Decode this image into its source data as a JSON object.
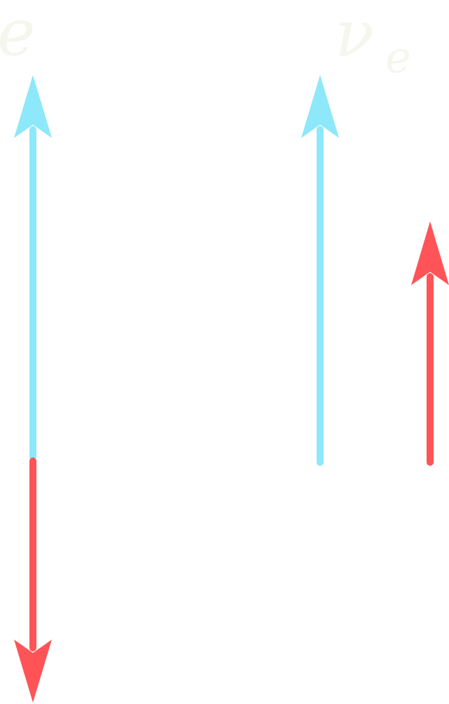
{
  "colors": {
    "background": "#ffffff",
    "label": "#f5f6ee",
    "cyan_arrow": "#8de8fa",
    "red_arrow": "#ff5457"
  },
  "labels": {
    "electron": {
      "symbol": "e",
      "superscript": "−"
    },
    "antineutrino": {
      "symbol": "ν",
      "subscript": "e",
      "overline": "—"
    }
  },
  "arrows": [
    {
      "name": "electron-momentum-arrow",
      "color": "cyan_arrow",
      "direction": "up"
    },
    {
      "name": "electron-spin-arrow",
      "color": "red_arrow",
      "direction": "down"
    },
    {
      "name": "antineutrino-momentum-arrow",
      "color": "cyan_arrow",
      "direction": "up"
    },
    {
      "name": "antineutrino-spin-arrow",
      "color": "red_arrow",
      "direction": "up"
    }
  ]
}
